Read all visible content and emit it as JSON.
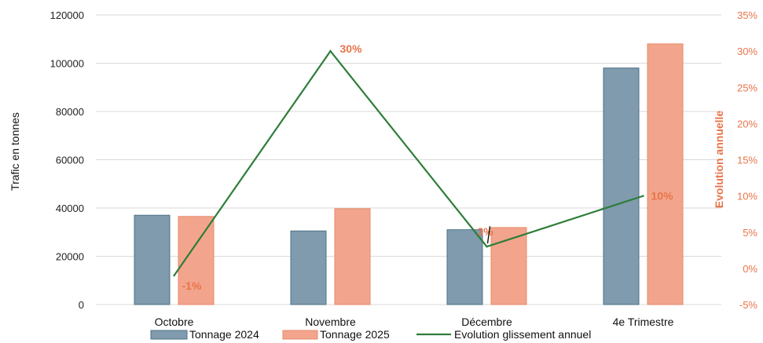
{
  "chart_data": {
    "type": "bar",
    "categories": [
      "Octobre",
      "Novembre",
      "Décembre",
      "4e Trimestre"
    ],
    "series": [
      {
        "name": "Tonnage 2024",
        "type": "bar",
        "axis": "left",
        "color": "#7F9BAD",
        "values": [
          37000,
          30500,
          31000,
          98000
        ]
      },
      {
        "name": "Tonnage 2025",
        "type": "bar",
        "axis": "left",
        "color": "#F2A58C",
        "values": [
          36500,
          39700,
          31900,
          108000
        ]
      },
      {
        "name": "Evolution glissement annuel",
        "type": "line",
        "axis": "right",
        "color": "#2E7D3A",
        "values": [
          -0.01,
          0.3,
          0.03,
          0.1
        ]
      }
    ],
    "data_labels": [
      "-1%",
      "30%",
      "3%",
      "10%"
    ],
    "y_left": {
      "label": "Trafic en tonnes",
      "range": [
        0,
        120000
      ],
      "ticks": [
        "0",
        "20000",
        "40000",
        "60000",
        "80000",
        "100000",
        "120000"
      ]
    },
    "y_right": {
      "label": "Evolution annuelle",
      "range": [
        -0.05,
        0.35
      ],
      "ticks": [
        "-5%",
        "0%",
        "5%",
        "10%",
        "15%",
        "20%",
        "25%",
        "30%",
        "35%"
      ]
    },
    "grid": true,
    "legend_position": "bottom"
  },
  "colors": {
    "grid": "#D9D9D9",
    "right_axis": "#E8744A",
    "bar_2024_stroke": "#4F7286",
    "bar_2025_stroke": "#E8896A"
  }
}
